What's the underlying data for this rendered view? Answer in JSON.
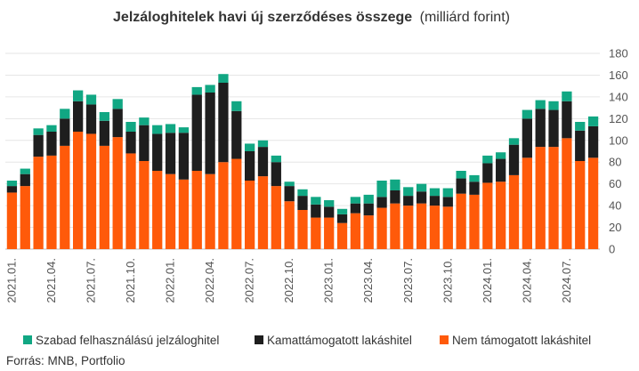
{
  "chart_data": {
    "type": "bar",
    "stacked": true,
    "title": "Jelzáloghitelek havi új szerződéses összege",
    "title_suffix": "(milliárd forint)",
    "source": "Forrás: MNB, Portfolio",
    "ylim": [
      0,
      180
    ],
    "yticks": [
      0,
      20,
      40,
      60,
      80,
      100,
      120,
      140,
      160,
      180
    ],
    "y_axis_position": "right",
    "legend_position": "bottom",
    "x_tick_labels": [
      {
        "index": 0,
        "label": "2021.01."
      },
      {
        "index": 3,
        "label": "2021.04."
      },
      {
        "index": 6,
        "label": "2021.07."
      },
      {
        "index": 9,
        "label": "2021.10."
      },
      {
        "index": 12,
        "label": "2022.01."
      },
      {
        "index": 15,
        "label": "2022.04."
      },
      {
        "index": 18,
        "label": "2022.07."
      },
      {
        "index": 21,
        "label": "2022.10."
      },
      {
        "index": 24,
        "label": "2023.01."
      },
      {
        "index": 27,
        "label": "2023.04."
      },
      {
        "index": 30,
        "label": "2023.07."
      },
      {
        "index": 33,
        "label": "2023.10."
      },
      {
        "index": 36,
        "label": "2024.01."
      },
      {
        "index": 39,
        "label": "2024.04."
      },
      {
        "index": 42,
        "label": "2024.07."
      }
    ],
    "series": [
      {
        "name": "Nem támogatott lakáshitel",
        "color": "#ff5a0a",
        "values": [
          52,
          58,
          85,
          86,
          95,
          108,
          106,
          95,
          103,
          88,
          81,
          72,
          69,
          64,
          72,
          69,
          80,
          83,
          63,
          67,
          58,
          44,
          36,
          29,
          29,
          24,
          33,
          31,
          38,
          42,
          40,
          42,
          40,
          39,
          51,
          50,
          61,
          62,
          68,
          84,
          94,
          94,
          102,
          81,
          84
        ]
      },
      {
        "name": "Kamattámogatott lakáshitel",
        "color": "#1e1e1e",
        "values": [
          6,
          11,
          20,
          22,
          25,
          28,
          27,
          23,
          26,
          20,
          33,
          34,
          38,
          43,
          70,
          75,
          73,
          44,
          27,
          27,
          22,
          14,
          13,
          12,
          10,
          8,
          9,
          11,
          10,
          12,
          9,
          11,
          9,
          9,
          14,
          12,
          18,
          21,
          28,
          36,
          35,
          34,
          34,
          28,
          29
        ]
      },
      {
        "name": "Szabad felhasználású jelzáloghitel",
        "color": "#11a783",
        "values": [
          5,
          5,
          6,
          6,
          9,
          10,
          9,
          8,
          9,
          9,
          7,
          8,
          8,
          5,
          7,
          7,
          8,
          9,
          7,
          6,
          6,
          4,
          6,
          7,
          6,
          5,
          6,
          8,
          15,
          10,
          8,
          7,
          7,
          8,
          7,
          6,
          7,
          6,
          6,
          8,
          8,
          8,
          9,
          8,
          9
        ]
      }
    ]
  }
}
